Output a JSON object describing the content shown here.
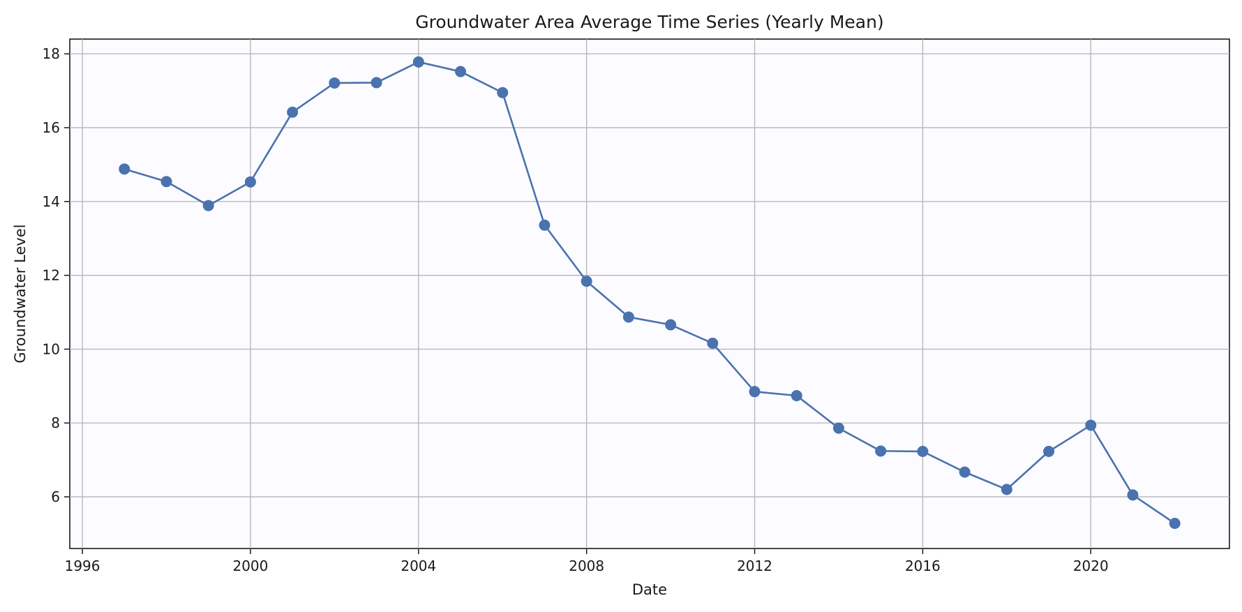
{
  "chart_data": {
    "type": "line",
    "title": "Groundwater Area Average Time Series (Yearly Mean)",
    "xlabel": "Date",
    "ylabel": "Groundwater Level",
    "xlim": [
      1995.7,
      2023.3
    ],
    "ylim": [
      4.6,
      18.4
    ],
    "xticks": [
      1996,
      2000,
      2004,
      2008,
      2012,
      2016,
      2020
    ],
    "yticks": [
      6,
      8,
      10,
      12,
      14,
      16,
      18
    ],
    "grid": true,
    "markers": "circle",
    "line_color": "#4a72ae",
    "marker_color": "#4a72ae",
    "series": [
      {
        "x": [
          1997,
          1998,
          1999,
          2000,
          2001,
          2002,
          2003,
          2004,
          2005,
          2006,
          2007,
          2008,
          2009,
          2010,
          2011,
          2012,
          2013,
          2014,
          2015,
          2016,
          2017,
          2018,
          2019,
          2020,
          2021,
          2022
        ],
        "values": [
          14.88,
          14.54,
          13.89,
          14.53,
          16.42,
          17.21,
          17.22,
          17.78,
          17.52,
          16.95,
          13.36,
          11.84,
          10.87,
          10.66,
          10.16,
          8.85,
          8.74,
          7.86,
          7.24,
          7.23,
          6.67,
          6.2,
          7.23,
          7.94,
          6.05,
          5.28
        ]
      }
    ]
  }
}
